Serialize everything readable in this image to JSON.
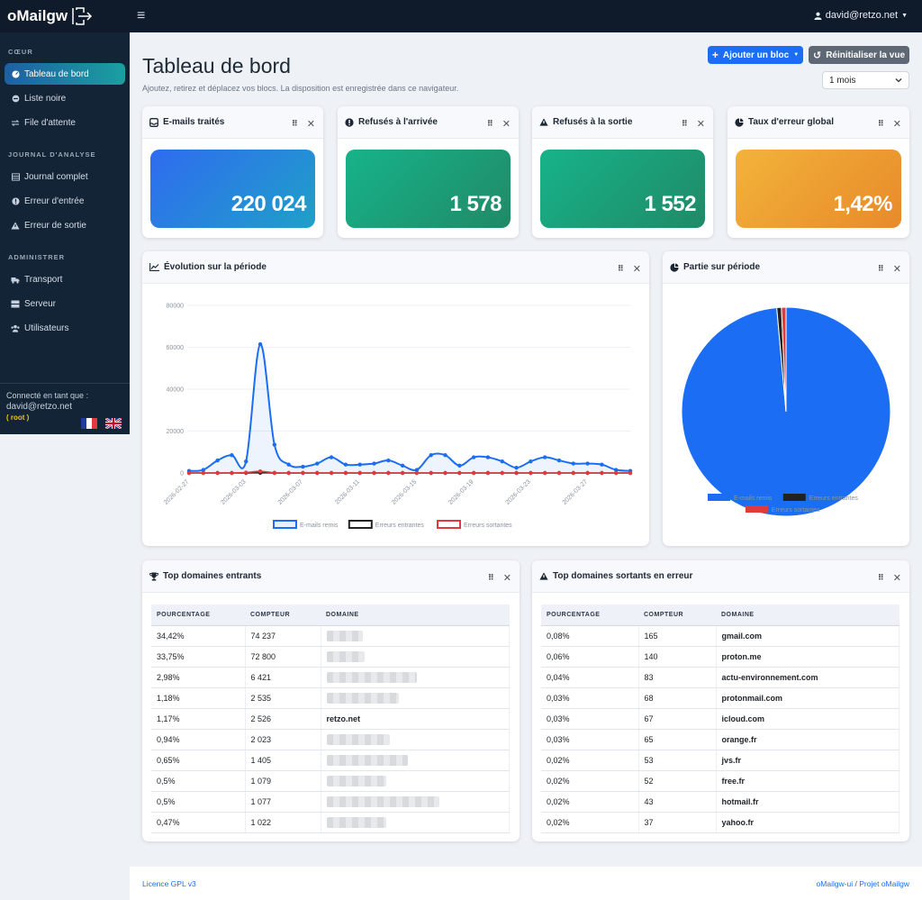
{
  "app": {
    "brand": "oMailgw",
    "user": "david@retzo.net"
  },
  "sidebar": {
    "sections": [
      "CŒUR",
      "JOURNAL D'ANALYSE",
      "ADMINISTRER"
    ],
    "items": [
      {
        "label": "Tableau de bord",
        "icon": "gauge-icon"
      },
      {
        "label": "Liste noire",
        "icon": "ban-icon"
      },
      {
        "label": "File d'attente",
        "icon": "queue-icon"
      },
      {
        "label": "Journal complet",
        "icon": "list-icon"
      },
      {
        "label": "Erreur d'entrée",
        "icon": "alert-circle-icon"
      },
      {
        "label": "Erreur de sortie",
        "icon": "warning-icon"
      },
      {
        "label": "Transport",
        "icon": "truck-icon"
      },
      {
        "label": "Serveur",
        "icon": "server-icon"
      },
      {
        "label": "Utilisateurs",
        "icon": "users-icon"
      }
    ],
    "connected_label": "Connecté en tant que :",
    "connected_user": "david@retzo.net",
    "role": "( root )"
  },
  "header": {
    "title": "Tableau de bord",
    "subtitle": "Ajoutez, retirez et déplacez vos blocs. La disposition est enregistrée dans ce navigateur.",
    "add_block": "Ajouter un bloc",
    "reset_view": "Réinitialiser la vue",
    "period": "1 mois"
  },
  "stats": [
    {
      "title": "E-mails traités",
      "value": "220 024"
    },
    {
      "title": "Refusés à l'arrivée",
      "value": "1 578"
    },
    {
      "title": "Refusés à la sortie",
      "value": "1 552"
    },
    {
      "title": "Taux d'erreur global",
      "value": "1,42%"
    }
  ],
  "evolution_title": "Évolution sur la période",
  "pie_title": "Partie sur période",
  "chart_data": [
    {
      "type": "line",
      "title": "Évolution sur la période",
      "x": [
        "2026-02-27",
        "2026-02-28",
        "2026-03-01",
        "2026-03-02",
        "2026-03-03",
        "2026-03-04",
        "2026-03-05",
        "2026-03-06",
        "2026-03-07",
        "2026-03-08",
        "2026-03-09",
        "2026-03-10",
        "2026-03-11",
        "2026-03-12",
        "2026-03-13",
        "2026-03-14",
        "2026-03-15",
        "2026-03-16",
        "2026-03-17",
        "2026-03-18",
        "2026-03-19",
        "2026-03-20",
        "2026-03-21",
        "2026-03-22",
        "2026-03-23",
        "2026-03-24",
        "2026-03-25",
        "2026-03-26",
        "2026-03-27",
        "2026-03-28",
        "2026-03-29",
        "2026-03-30"
      ],
      "xticks": [
        "2026-02-27",
        "2026-03-03",
        "2026-03-07",
        "2026-03-11",
        "2026-03-15",
        "2026-03-19",
        "2026-03-23",
        "2026-03-27"
      ],
      "yticks": [
        "0",
        "20000",
        "40000",
        "60000",
        "80000"
      ],
      "ylim": [
        0,
        80000
      ],
      "series": [
        {
          "name": "E-mails remis",
          "color": "#1b6ef3",
          "values": [
            1000,
            1500,
            6000,
            8500,
            5500,
            61500,
            13500,
            4000,
            3000,
            4500,
            7500,
            4000,
            4000,
            4500,
            6000,
            3500,
            1500,
            8500,
            8500,
            3500,
            7500,
            7500,
            5500,
            2500,
            5500,
            7500,
            6000,
            4500,
            4500,
            4000,
            1500,
            1000
          ]
        },
        {
          "name": "Erreurs entrantes",
          "color": "#222222",
          "values": [
            0,
            0,
            0,
            0,
            0,
            100,
            0,
            0,
            0,
            0,
            0,
            0,
            0,
            0,
            0,
            0,
            0,
            0,
            0,
            0,
            0,
            0,
            0,
            0,
            0,
            0,
            0,
            0,
            0,
            0,
            0,
            0
          ]
        },
        {
          "name": "Erreurs sortantes",
          "color": "#e03a3e",
          "values": [
            0,
            0,
            0,
            0,
            200,
            800,
            100,
            0,
            0,
            0,
            0,
            0,
            0,
            0,
            0,
            0,
            0,
            0,
            0,
            0,
            0,
            0,
            0,
            0,
            0,
            0,
            0,
            0,
            0,
            0,
            0,
            0
          ]
        }
      ]
    },
    {
      "type": "pie",
      "title": "Partie sur période",
      "labels": [
        "E-mails remis",
        "Erreurs entrantes",
        "Erreurs sortantes"
      ],
      "values": [
        216894,
        1578,
        1552
      ],
      "colors": [
        "#1b6ef3",
        "#222222",
        "#e03a3e"
      ]
    }
  ],
  "incoming": {
    "title": "Top domaines entrants",
    "headers": [
      "POURCENTAGE",
      "COMPTEUR",
      "DOMAINE"
    ],
    "rows": [
      {
        "pct": "34,42%",
        "count": "74 237",
        "domain": ""
      },
      {
        "pct": "33,75%",
        "count": "72 800",
        "domain": ""
      },
      {
        "pct": "2,98%",
        "count": "6 421",
        "domain": ""
      },
      {
        "pct": "1,18%",
        "count": "2 535",
        "domain": ""
      },
      {
        "pct": "1,17%",
        "count": "2 526",
        "domain": "retzo.net"
      },
      {
        "pct": "0,94%",
        "count": "2 023",
        "domain": ""
      },
      {
        "pct": "0,65%",
        "count": "1 405",
        "domain": ""
      },
      {
        "pct": "0,5%",
        "count": "1 079",
        "domain": ""
      },
      {
        "pct": "0,5%",
        "count": "1 077",
        "domain": ""
      },
      {
        "pct": "0,47%",
        "count": "1 022",
        "domain": ""
      }
    ]
  },
  "outgoing": {
    "title": "Top domaines sortants en erreur",
    "headers": [
      "POURCENTAGE",
      "COMPTEUR",
      "DOMAINE"
    ],
    "rows": [
      {
        "pct": "0,08%",
        "count": "165",
        "domain": "gmail.com"
      },
      {
        "pct": "0,06%",
        "count": "140",
        "domain": "proton.me"
      },
      {
        "pct": "0,04%",
        "count": "83",
        "domain": "actu-environnement.com"
      },
      {
        "pct": "0,03%",
        "count": "68",
        "domain": "protonmail.com"
      },
      {
        "pct": "0,03%",
        "count": "67",
        "domain": "icloud.com"
      },
      {
        "pct": "0,03%",
        "count": "65",
        "domain": "orange.fr"
      },
      {
        "pct": "0,02%",
        "count": "53",
        "domain": "jvs.fr"
      },
      {
        "pct": "0,02%",
        "count": "52",
        "domain": "free.fr"
      },
      {
        "pct": "0,02%",
        "count": "43",
        "domain": "hotmail.fr"
      },
      {
        "pct": "0,02%",
        "count": "37",
        "domain": "yahoo.fr"
      }
    ]
  },
  "footer": {
    "license": "Licence GPL v3",
    "project_left": "oMailgw-ui",
    "sep": " / ",
    "project_right": "Projet oMailgw"
  }
}
